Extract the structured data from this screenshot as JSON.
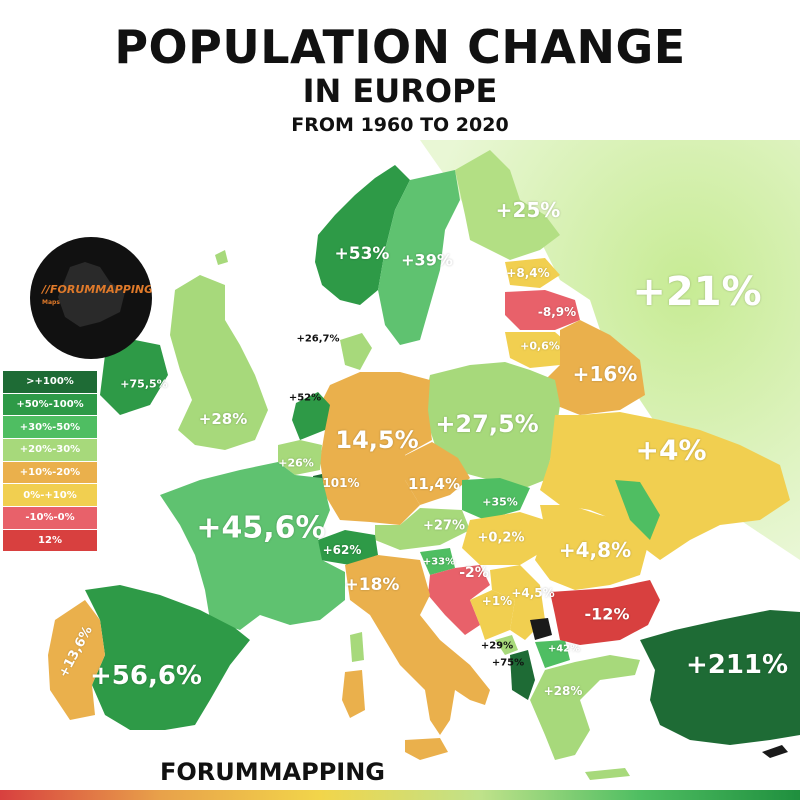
{
  "title": {
    "line1": "POPULATION CHANGE",
    "line2": "IN EUROPE",
    "line3": "FROM 1960 TO 2020"
  },
  "logo": {
    "text": "//FORUMMAPPING",
    "sub": "Maps"
  },
  "footer": "FORUMMAPPING",
  "legend": [
    {
      "label": ">+100%",
      "color": "#1e6b35"
    },
    {
      "label": "+50%-100%",
      "color": "#2e9a47"
    },
    {
      "label": "+30%-50%",
      "color": "#4fbe62"
    },
    {
      "label": "+20%-30%",
      "color": "#a7d97b"
    },
    {
      "label": "+10%-20%",
      "color": "#eab04c"
    },
    {
      "label": "0%-+10%",
      "color": "#f1cf50"
    },
    {
      "label": "-10%-0%",
      "color": "#e8616a"
    },
    {
      "label": "12%",
      "color": "#d8403f"
    }
  ],
  "colors": {
    "russia": "#c9ec9b",
    "sea": "#ffffff"
  },
  "labels": {
    "norway": "+53%",
    "sweden": "+39%",
    "finland": "+25%",
    "russia": "+21%",
    "estonia": "+8,4%",
    "latvia": "-8,9%",
    "lithuania": "+0,6%",
    "belarus": "+16%",
    "denmark": "+26,7%",
    "ireland": "+75,5%",
    "uk": "+28%",
    "netherlands": "+52%",
    "belgium": "+26%",
    "luxembourg": "101%",
    "germany": "14,5%",
    "poland": "+27,5%",
    "ukraine": "+4%",
    "france": "+45,6%",
    "czechia": "11,4%",
    "slovakia": "+35%",
    "moldova": "",
    "austria": "+27%",
    "hungary": "+0,2%",
    "romania": "+4,8%",
    "switzerland": "+62%",
    "slovenia": "+33%",
    "croatia": "-2%",
    "serbia": "+1%",
    "bosnia": "+4,5%",
    "bulgaria": "-12%",
    "italy": "+18%",
    "montenegro": "+29%",
    "albania": "+75%",
    "macedonia": "+42%",
    "greece": "+28%",
    "turkey": "+211%",
    "portugal": "+13,6%",
    "spain": "+56,6%"
  }
}
